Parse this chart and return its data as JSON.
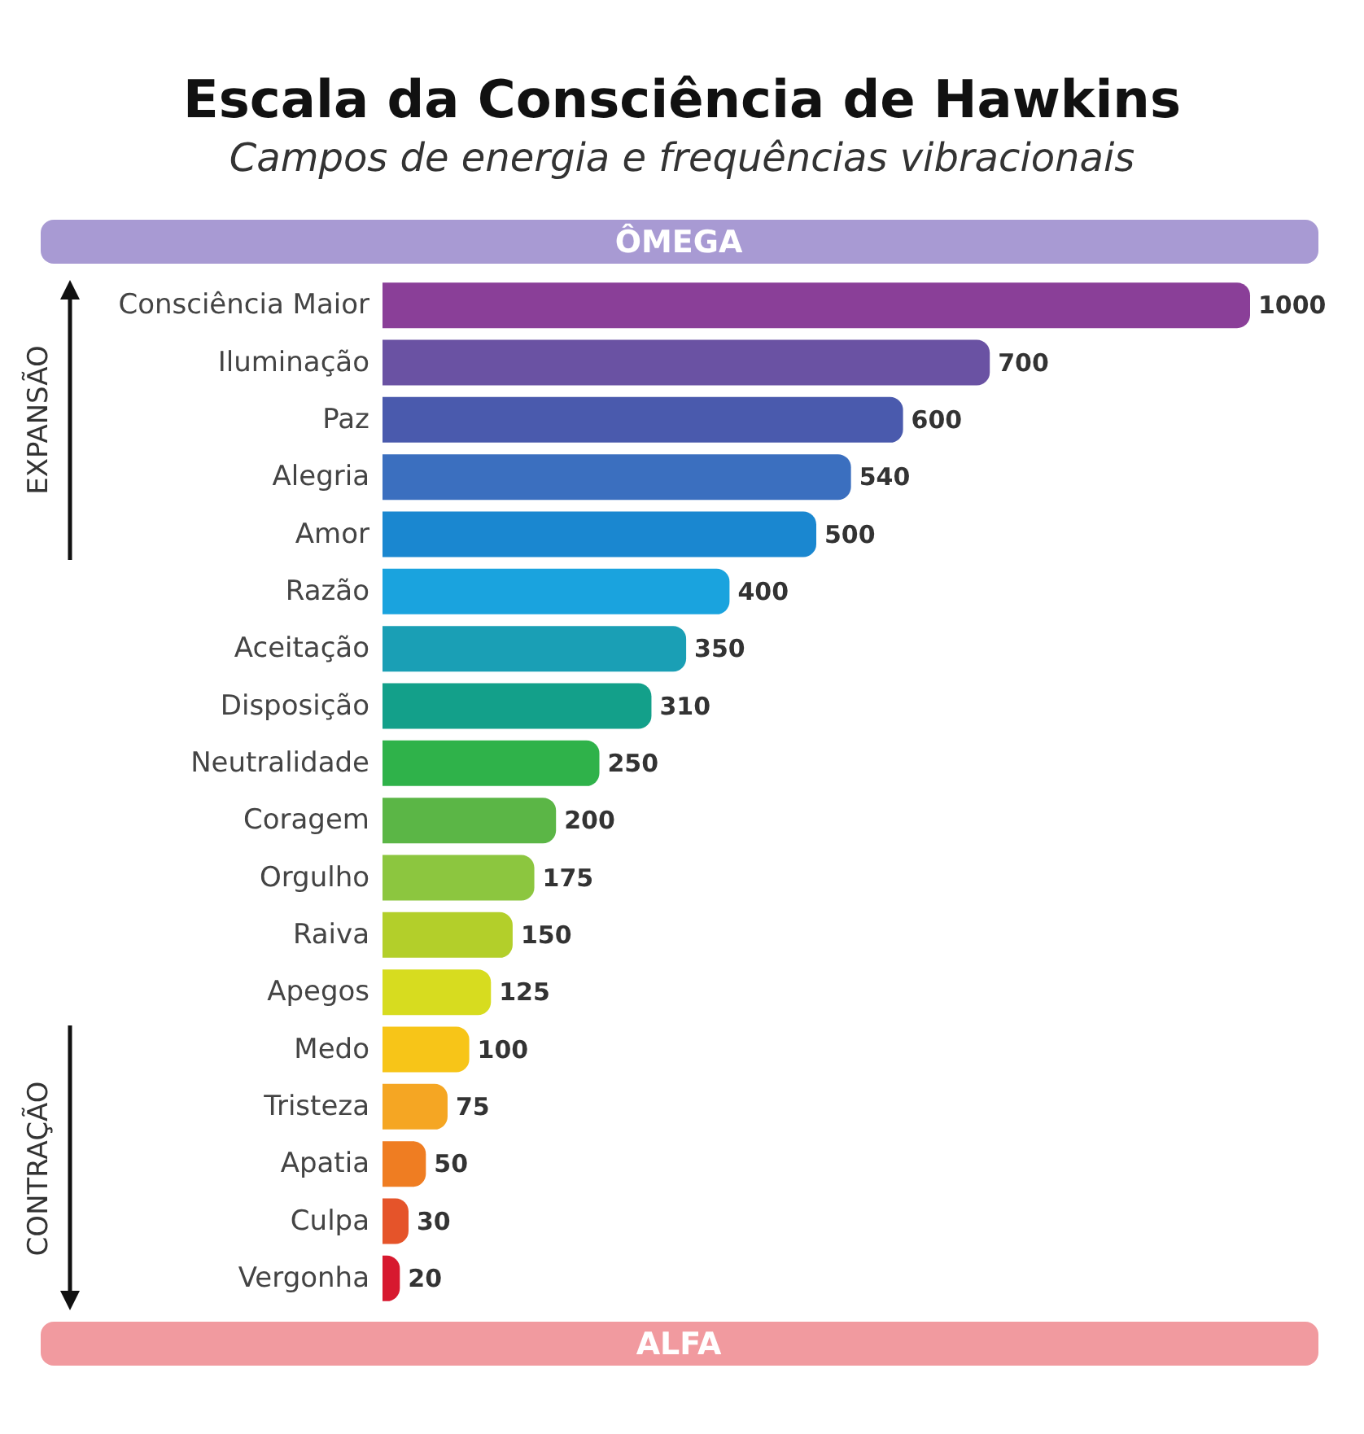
{
  "chart_data": {
    "type": "bar",
    "orientation": "horizontal",
    "title": "Escala da Consciência de Hawkins",
    "subtitle": "Campos de energia e frequências vibracionais",
    "categories": [
      "Consciência Maior",
      "Iluminação",
      "Paz",
      "Alegria",
      "Amor",
      "Razão",
      "Aceitação",
      "Disposição",
      "Neutralidade",
      "Coragem",
      "Orgulho",
      "Raiva",
      "Apegos",
      "Medo",
      "Tristeza",
      "Apatia",
      "Culpa",
      "Vergonha"
    ],
    "values": [
      1000,
      700,
      600,
      540,
      500,
      400,
      350,
      310,
      250,
      200,
      175,
      150,
      125,
      100,
      75,
      50,
      30,
      20
    ],
    "colors": [
      "#8a3f98",
      "#6a52a3",
      "#4a5aad",
      "#3b6fbf",
      "#1a87d0",
      "#1aa3de",
      "#1a9fb5",
      "#13a08a",
      "#2fb24a",
      "#5bb646",
      "#8cc63f",
      "#b3cf2a",
      "#d7dc1f",
      "#f7c518",
      "#f5a623",
      "#ef7d22",
      "#e5542a",
      "#d7192f"
    ],
    "data_labels": true,
    "annotations": [
      "ÔMEGA",
      "ALFA",
      "EXPANSÃO",
      "CONTRAÇÃO"
    ]
  }
}
